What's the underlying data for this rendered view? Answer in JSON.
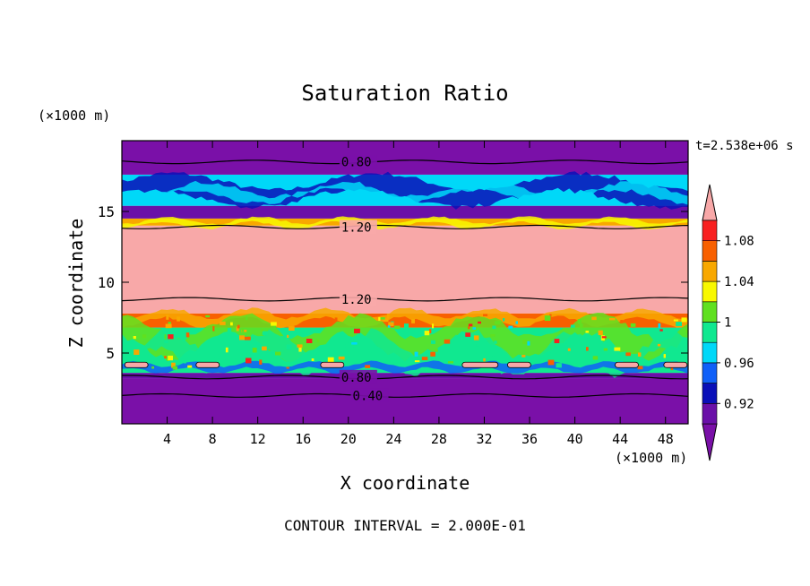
{
  "chart_data": {
    "type": "heatmap",
    "title": "Saturation Ratio",
    "xlabel": "X coordinate",
    "ylabel": "Z coordinate",
    "x_unit": "(×1000 m)",
    "y_unit": "(×1000 m)",
    "time_label": "t=2.538e+06 s",
    "footer": "CONTOUR INTERVAL = 2.000E-01",
    "xlim": [
      0,
      50
    ],
    "ylim": [
      0,
      20
    ],
    "x_ticks": [
      4,
      8,
      12,
      16,
      20,
      24,
      28,
      32,
      36,
      40,
      44,
      48
    ],
    "y_ticks": [
      5,
      10,
      15
    ],
    "colorbar": {
      "levels": [
        0.9,
        0.92,
        0.94,
        0.96,
        0.98,
        1.0,
        1.02,
        1.04,
        1.06,
        1.08,
        1.1
      ],
      "tick_labels": [
        "0.92",
        "0.96",
        "1",
        "1.04",
        "1.08"
      ],
      "tick_values": [
        0.92,
        0.96,
        1.0,
        1.04,
        1.08
      ],
      "under_color": "#7a10a8",
      "over_color": "#f8a8a8",
      "colors": [
        "#6a10a8",
        "#0a10b8",
        "#1060f8",
        "#00d8f8",
        "#10e890",
        "#60e020",
        "#f8f800",
        "#f8a800",
        "#f86000",
        "#f82020"
      ]
    },
    "bands": [
      {
        "z": [
          0.0,
          3.2
        ],
        "value": 0.4
      },
      {
        "z": [
          3.2,
          3.6
        ],
        "value": 0.91
      },
      {
        "z": [
          3.6,
          6.8
        ],
        "value": 0.99
      },
      {
        "z": [
          6.8,
          7.8
        ],
        "value": 1.07
      },
      {
        "z": [
          7.8,
          14.0
        ],
        "value": 1.12
      },
      {
        "z": [
          14.0,
          14.5
        ],
        "value": 1.05
      },
      {
        "z": [
          14.5,
          15.4
        ],
        "value": 0.91
      },
      {
        "z": [
          15.4,
          17.6
        ],
        "value": 0.96
      },
      {
        "z": [
          17.6,
          20.0
        ],
        "value": 0.7
      }
    ],
    "contours": [
      {
        "value": 0.4,
        "z": 2.0,
        "label": "0.40",
        "label_x": 18
      },
      {
        "value": 0.8,
        "z": 3.3,
        "label": "0.80",
        "label_x": 17
      },
      {
        "value": 0.8,
        "z": 18.5,
        "label": "0.80",
        "label_x": 17
      },
      {
        "value": 1.2,
        "z": 13.9,
        "label": "1.20",
        "label_x": 17
      },
      {
        "value": 1.2,
        "z": 8.8,
        "label": "1.20",
        "label_x": 17
      }
    ]
  }
}
